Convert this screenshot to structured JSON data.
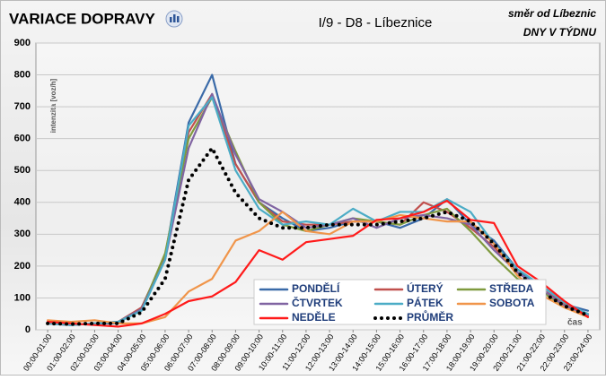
{
  "chart_data": {
    "type": "line",
    "title": "VARIACE DOPRAVY",
    "subtitle": "I/9 - D8 - Líbeznice",
    "direction": "směr od Líbeznic",
    "period": "DNY V TÝDNU",
    "y_label": "intenzita [voz/h]",
    "x_label": "čas",
    "categories": [
      "00:00-01:00",
      "01:00-02:00",
      "02:00-03:00",
      "03:00-04:00",
      "04:00-05:00",
      "05:00-06:00",
      "06:00-07:00",
      "07:00-08:00",
      "08:00-09:00",
      "09:00-10:00",
      "10:00-11:00",
      "11:00-12:00",
      "12:00-13:00",
      "13:00-14:00",
      "14:00-15:00",
      "15:00-16:00",
      "16:00-17:00",
      "17:00-18:00",
      "18:00-19:00",
      "19:00-20:00",
      "20:00-21:00",
      "21:00-22:00",
      "22:00-23:00",
      "23:00-24:00"
    ],
    "series": [
      {
        "name": "PONDĚLÍ",
        "color": "#3a6aa8",
        "values": [
          20,
          15,
          20,
          20,
          70,
          230,
          650,
          800,
          520,
          400,
          350,
          310,
          320,
          340,
          340,
          320,
          350,
          410,
          330,
          280,
          190,
          130,
          80,
          60
        ]
      },
      {
        "name": "ÚTERÝ",
        "color": "#c0504d",
        "values": [
          20,
          15,
          20,
          25,
          70,
          230,
          620,
          740,
          520,
          400,
          340,
          330,
          330,
          340,
          340,
          330,
          400,
          370,
          320,
          260,
          180,
          130,
          80,
          50
        ]
      },
      {
        "name": "STŘEDA",
        "color": "#7f9a3e",
        "values": [
          20,
          15,
          20,
          25,
          65,
          240,
          600,
          730,
          560,
          400,
          330,
          310,
          330,
          350,
          340,
          330,
          360,
          380,
          310,
          230,
          160,
          120,
          75,
          45
        ]
      },
      {
        "name": "ČTVRTEK",
        "color": "#8064a2",
        "values": [
          20,
          15,
          20,
          25,
          65,
          220,
          570,
          740,
          550,
          410,
          370,
          320,
          330,
          350,
          320,
          350,
          360,
          350,
          330,
          250,
          180,
          130,
          75,
          45
        ]
      },
      {
        "name": "PÁTEK",
        "color": "#4bacc6",
        "values": [
          20,
          15,
          20,
          25,
          60,
          220,
          640,
          730,
          500,
          380,
          330,
          340,
          330,
          380,
          340,
          370,
          370,
          410,
          370,
          270,
          190,
          140,
          85,
          50
        ]
      },
      {
        "name": "SOBOTA",
        "color": "#f0954a",
        "values": [
          30,
          25,
          30,
          20,
          20,
          40,
          120,
          160,
          280,
          310,
          370,
          310,
          300,
          340,
          340,
          360,
          350,
          340,
          340,
          270,
          170,
          110,
          70,
          40
        ]
      },
      {
        "name": "NEDĚLE",
        "color": "#ff1a1a",
        "values": [
          25,
          20,
          15,
          10,
          20,
          50,
          90,
          105,
          150,
          250,
          220,
          275,
          285,
          295,
          345,
          350,
          370,
          405,
          345,
          335,
          200,
          150,
          90,
          40
        ]
      },
      {
        "name": "PRŮMĚR",
        "color": "#000000",
        "line_style": "dotted",
        "values": [
          20,
          18,
          20,
          20,
          55,
          160,
          470,
          570,
          430,
          350,
          320,
          320,
          330,
          330,
          330,
          340,
          350,
          370,
          340,
          270,
          180,
          120,
          75,
          45
        ]
      }
    ],
    "ylim": [
      0,
      900
    ],
    "yticks": [
      0,
      100,
      200,
      300,
      400,
      500,
      600,
      700,
      800,
      900
    ],
    "grid": true
  }
}
